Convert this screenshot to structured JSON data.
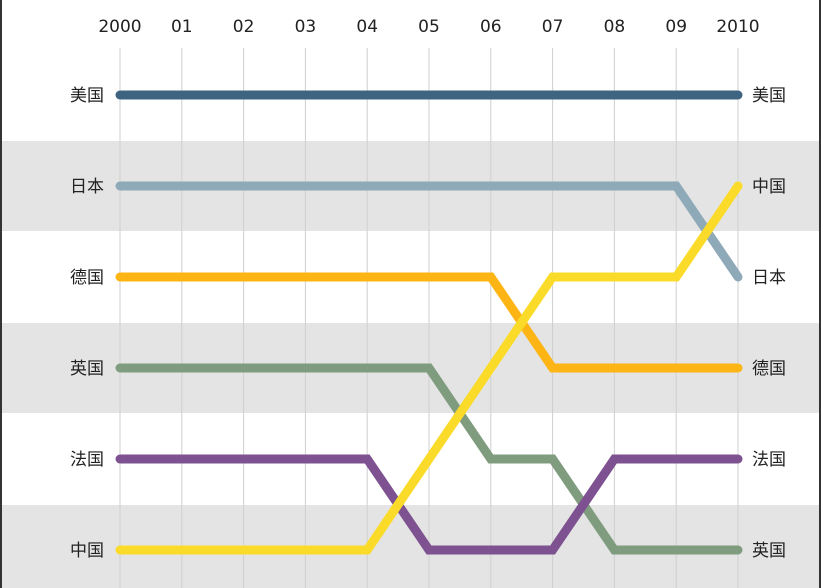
{
  "chart_data": {
    "type": "line",
    "title": "",
    "xlabel": "",
    "ylabel": "",
    "x": [
      "2000",
      "01",
      "02",
      "03",
      "04",
      "05",
      "06",
      "07",
      "08",
      "09",
      "2010"
    ],
    "y_axis": "rank (1 = top)",
    "ylim": [
      1,
      6
    ],
    "grid": true,
    "colors": {
      "band": "#e4e4e4",
      "gridline": "#cfcfcf",
      "border": "#333333"
    },
    "left_labels": [
      "美国",
      "日本",
      "德国",
      "英国",
      "法国",
      "中国"
    ],
    "right_labels": [
      "美国",
      "中国",
      "日本",
      "德国",
      "法国",
      "英国"
    ],
    "series": [
      {
        "name": "美国",
        "color": "#3f6482",
        "values": [
          1,
          1,
          1,
          1,
          1,
          1,
          1,
          1,
          1,
          1,
          1
        ]
      },
      {
        "name": "日本",
        "color": "#8ea9b8",
        "values": [
          2,
          2,
          2,
          2,
          2,
          2,
          2,
          2,
          2,
          2,
          3
        ]
      },
      {
        "name": "德国",
        "color": "#fdb515",
        "values": [
          3,
          3,
          3,
          3,
          3,
          3,
          3,
          4,
          4,
          4,
          4
        ]
      },
      {
        "name": "英国",
        "color": "#7f9c7e",
        "values": [
          4,
          4,
          4,
          4,
          4,
          4,
          5,
          5,
          6,
          6,
          6
        ]
      },
      {
        "name": "法国",
        "color": "#7e5290",
        "values": [
          5,
          5,
          5,
          5,
          5,
          6,
          6,
          6,
          5,
          5,
          5
        ]
      },
      {
        "name": "中国",
        "color": "#fbdb2a",
        "values": [
          6,
          6,
          6,
          6,
          6,
          5,
          4,
          3,
          3,
          3,
          2
        ]
      }
    ]
  }
}
